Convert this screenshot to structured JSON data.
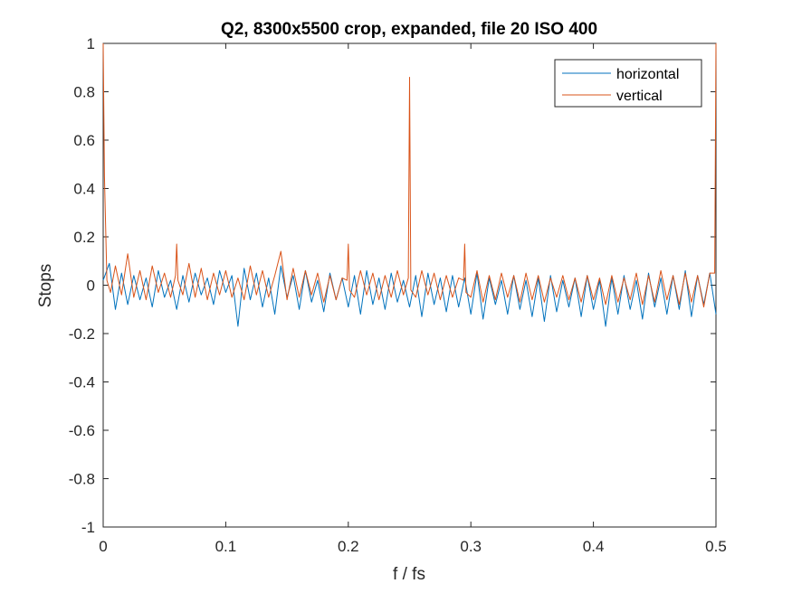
{
  "chart_data": {
    "type": "line",
    "title": "Q2, 8300x5500 crop, expanded, file 20 ISO 400",
    "xlabel": "f / fs",
    "ylabel": "Stops",
    "xlim": [
      0,
      0.5
    ],
    "ylim": [
      -1,
      1
    ],
    "xticks": [
      0,
      0.1,
      0.2,
      0.3,
      0.4,
      0.5
    ],
    "xtick_labels": [
      "0",
      "0.1",
      "0.2",
      "0.3",
      "0.4",
      "0.5"
    ],
    "yticks": [
      -1,
      -0.8,
      -0.6,
      -0.4,
      -0.2,
      0,
      0.2,
      0.4,
      0.6,
      0.8,
      1
    ],
    "ytick_labels": [
      "-1",
      "-0.8",
      "-0.6",
      "-0.4",
      "-0.2",
      "0",
      "0.2",
      "0.4",
      "0.6",
      "0.8",
      "1"
    ],
    "grid": false,
    "legend_position": "top-right",
    "series": [
      {
        "name": "horizontal",
        "color": "#0072BD",
        "x": [
          0,
          0.005,
          0.01,
          0.015,
          0.02,
          0.025,
          0.03,
          0.035,
          0.04,
          0.045,
          0.05,
          0.055,
          0.06,
          0.065,
          0.07,
          0.075,
          0.08,
          0.085,
          0.09,
          0.095,
          0.1,
          0.105,
          0.11,
          0.115,
          0.12,
          0.125,
          0.13,
          0.135,
          0.14,
          0.145,
          0.15,
          0.155,
          0.16,
          0.165,
          0.17,
          0.175,
          0.18,
          0.185,
          0.19,
          0.195,
          0.2,
          0.205,
          0.21,
          0.215,
          0.22,
          0.225,
          0.23,
          0.235,
          0.24,
          0.245,
          0.25,
          0.255,
          0.26,
          0.265,
          0.27,
          0.275,
          0.28,
          0.285,
          0.29,
          0.295,
          0.3,
          0.305,
          0.31,
          0.315,
          0.32,
          0.325,
          0.33,
          0.335,
          0.34,
          0.345,
          0.35,
          0.355,
          0.36,
          0.365,
          0.37,
          0.375,
          0.38,
          0.385,
          0.39,
          0.395,
          0.4,
          0.405,
          0.41,
          0.415,
          0.42,
          0.425,
          0.43,
          0.435,
          0.44,
          0.445,
          0.45,
          0.455,
          0.46,
          0.465,
          0.47,
          0.475,
          0.48,
          0.485,
          0.49,
          0.495,
          0.5
        ],
        "y": [
          0.02,
          0.09,
          -0.1,
          0.05,
          -0.08,
          0.04,
          -0.06,
          0.03,
          -0.09,
          0.06,
          -0.05,
          0.02,
          -0.1,
          0.04,
          -0.07,
          0.05,
          -0.04,
          0.03,
          -0.08,
          0.06,
          -0.03,
          0.04,
          -0.17,
          0.07,
          -0.06,
          0.05,
          -0.09,
          0.03,
          -0.12,
          0.08,
          -0.05,
          0.04,
          -0.1,
          0.06,
          -0.07,
          0.02,
          -0.11,
          0.05,
          -0.06,
          0.03,
          -0.09,
          0.04,
          -0.12,
          0.06,
          -0.08,
          0.03,
          -0.1,
          0.05,
          -0.07,
          0.02,
          -0.09,
          0.04,
          -0.13,
          0.05,
          -0.08,
          0.03,
          -0.11,
          0.04,
          -0.09,
          0.03,
          -0.12,
          0.05,
          -0.14,
          0.03,
          -0.08,
          0.02,
          -0.12,
          0.04,
          -0.1,
          0.02,
          -0.13,
          0.03,
          -0.15,
          0.04,
          -0.11,
          0.02,
          -0.09,
          0.03,
          -0.13,
          0.04,
          -0.1,
          0.02,
          -0.17,
          0.03,
          -0.12,
          0.04,
          -0.1,
          0.02,
          -0.14,
          0.05,
          -0.09,
          0.03,
          -0.12,
          0.04,
          -0.1,
          0.06,
          -0.13,
          0.04,
          -0.08,
          0.05,
          -0.12
        ]
      },
      {
        "name": "vertical",
        "color": "#D95319",
        "x": [
          0,
          0.001,
          0.003,
          0.006,
          0.01,
          0.015,
          0.02,
          0.025,
          0.03,
          0.035,
          0.04,
          0.045,
          0.05,
          0.055,
          0.059,
          0.06,
          0.061,
          0.065,
          0.07,
          0.075,
          0.08,
          0.085,
          0.09,
          0.095,
          0.1,
          0.105,
          0.11,
          0.115,
          0.12,
          0.125,
          0.13,
          0.135,
          0.14,
          0.145,
          0.15,
          0.155,
          0.16,
          0.165,
          0.17,
          0.175,
          0.18,
          0.185,
          0.19,
          0.195,
          0.199,
          0.2,
          0.201,
          0.205,
          0.21,
          0.215,
          0.22,
          0.225,
          0.23,
          0.235,
          0.24,
          0.245,
          0.249,
          0.25,
          0.251,
          0.255,
          0.26,
          0.265,
          0.27,
          0.275,
          0.28,
          0.285,
          0.29,
          0.294,
          0.295,
          0.296,
          0.3,
          0.305,
          0.31,
          0.315,
          0.32,
          0.325,
          0.33,
          0.335,
          0.34,
          0.345,
          0.35,
          0.355,
          0.36,
          0.365,
          0.37,
          0.375,
          0.38,
          0.385,
          0.39,
          0.395,
          0.4,
          0.405,
          0.41,
          0.415,
          0.42,
          0.425,
          0.43,
          0.435,
          0.44,
          0.445,
          0.45,
          0.455,
          0.46,
          0.465,
          0.47,
          0.475,
          0.48,
          0.485,
          0.49,
          0.495,
          0.499,
          0.5
        ],
        "y": [
          1,
          0.45,
          0.02,
          -0.03,
          0.08,
          -0.04,
          0.13,
          -0.05,
          0.06,
          -0.06,
          0.08,
          -0.03,
          0.05,
          -0.05,
          0.04,
          0.17,
          0.02,
          -0.04,
          0.09,
          -0.05,
          0.07,
          -0.06,
          0.05,
          -0.04,
          0.06,
          -0.05,
          0.03,
          -0.06,
          0.08,
          -0.04,
          0.06,
          -0.05,
          0.04,
          0.14,
          -0.06,
          0.07,
          -0.05,
          0.06,
          -0.04,
          0.05,
          -0.07,
          0.04,
          -0.06,
          0.03,
          0.02,
          0.17,
          -0.02,
          -0.05,
          0.06,
          -0.04,
          0.05,
          -0.06,
          0.04,
          -0.05,
          0.06,
          -0.04,
          0.03,
          0.86,
          -0.02,
          -0.05,
          0.06,
          -0.04,
          0.05,
          -0.06,
          0.04,
          -0.05,
          0.03,
          0.02,
          0.17,
          -0.03,
          -0.05,
          0.06,
          -0.07,
          0.04,
          -0.06,
          0.05,
          -0.05,
          0.04,
          -0.07,
          0.05,
          -0.06,
          0.04,
          -0.07,
          0.03,
          -0.05,
          0.04,
          -0.06,
          0.03,
          -0.07,
          0.04,
          -0.06,
          0.03,
          -0.08,
          0.04,
          -0.07,
          0.03,
          -0.06,
          0.05,
          -0.08,
          0.04,
          -0.07,
          0.06,
          -0.06,
          0.04,
          -0.08,
          0.05,
          -0.07,
          0.04,
          -0.09,
          0.05,
          0.05,
          1
        ]
      }
    ]
  }
}
